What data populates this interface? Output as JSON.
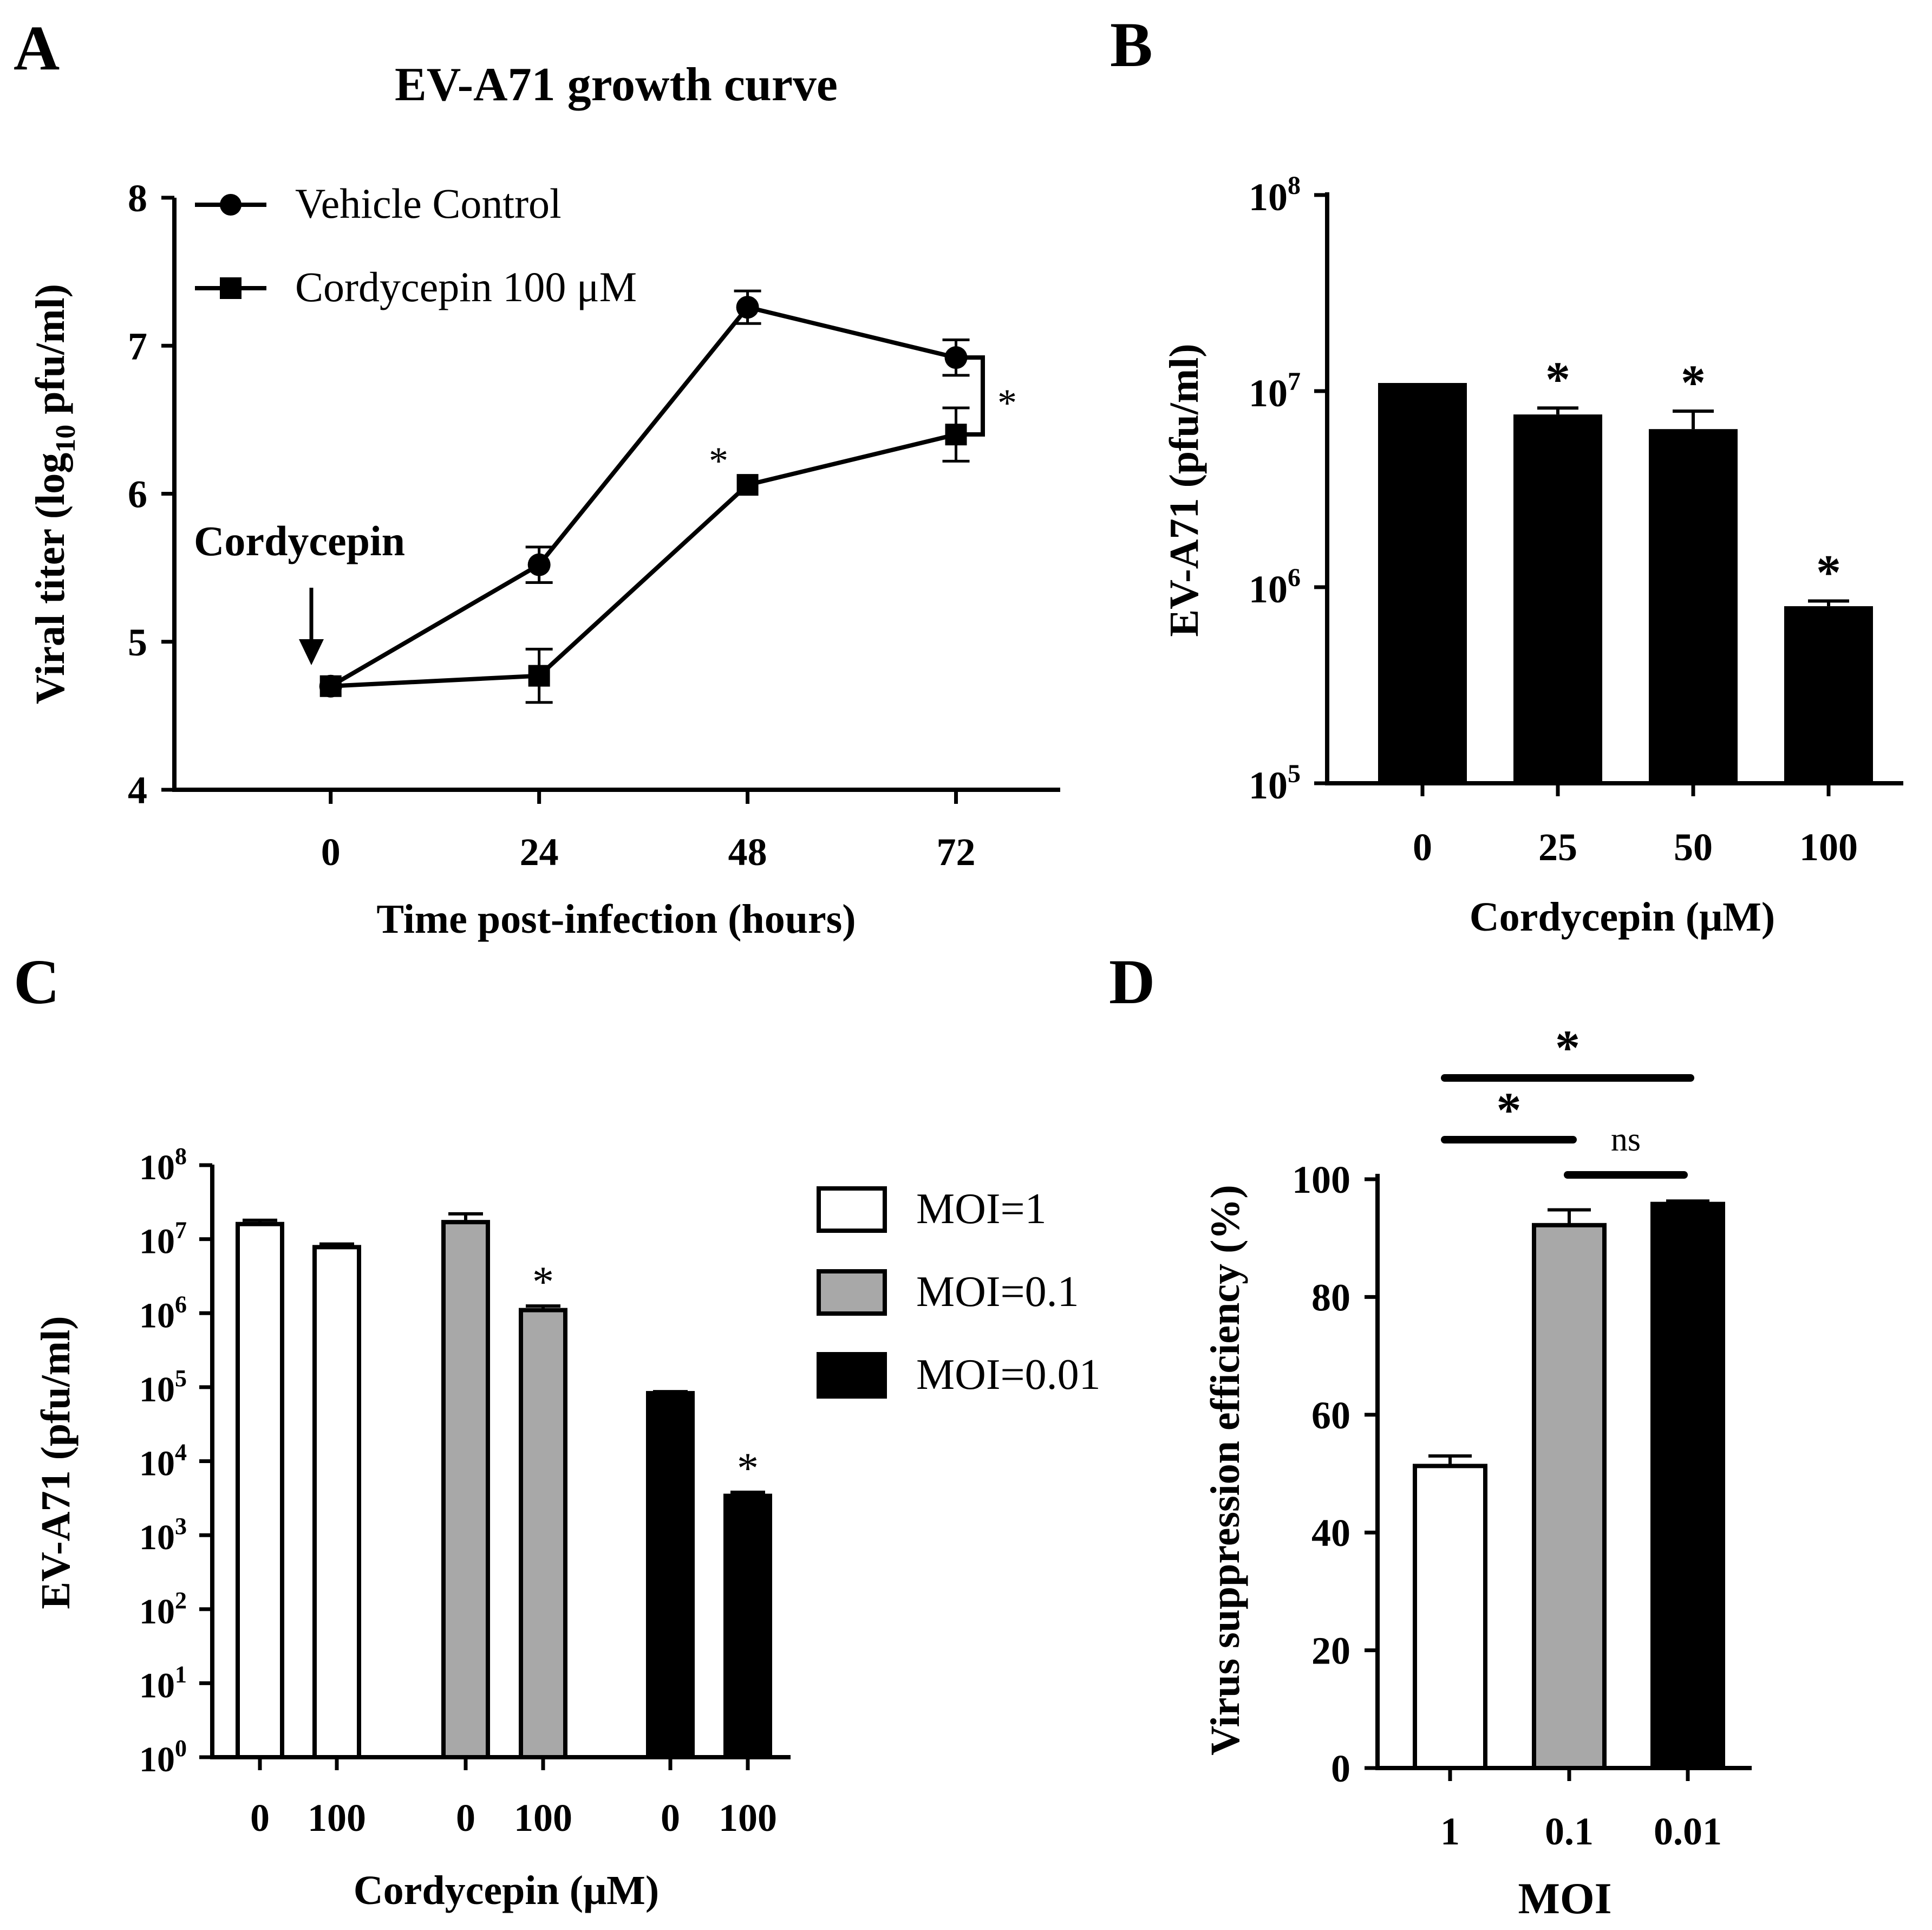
{
  "panels": {
    "A": "A",
    "B": "B",
    "C": "C",
    "D": "D"
  },
  "chart_data": [
    {
      "panel": "A",
      "type": "line",
      "title": "EV-A71 growth curve",
      "xlabel": "Time post-infection (hours)",
      "ylabel_parts": [
        "Viral titer (log",
        "10",
        " pfu/ml)"
      ],
      "x": [
        0,
        24,
        48,
        72
      ],
      "x_ticks": [
        "0",
        "24",
        "48",
        "72"
      ],
      "xlim": [
        -18,
        84
      ],
      "ylim": [
        4,
        8
      ],
      "y_ticks": [
        "4",
        "5",
        "6",
        "7",
        "8"
      ],
      "series": [
        {
          "name": "Vehicle Control",
          "marker": "circle",
          "values": [
            4.7,
            5.52,
            7.26,
            6.92
          ],
          "errors": [
            0,
            0.12,
            0.11,
            0.12
          ]
        },
        {
          "name": "Cordycepin 100 μM",
          "marker": "square",
          "values": [
            4.7,
            4.77,
            6.06,
            6.4
          ],
          "errors": [
            0,
            0.18,
            0,
            0.18
          ]
        }
      ],
      "annotations": {
        "treatment_label": "Cordycepin",
        "star_48": "*",
        "bracket_star": "*"
      },
      "legend": "top-left"
    },
    {
      "panel": "B",
      "type": "bar",
      "scale": "log",
      "xlabel": "Cordycepin (μM)",
      "ylabel": "EV-A71 (pfu/ml)",
      "categories": [
        "0",
        "25",
        "50",
        "100"
      ],
      "values": [
        11000000,
        7600000,
        6400000,
        800000
      ],
      "errors": [
        0,
        600000,
        1500000,
        50000
      ],
      "significance": [
        "",
        "*",
        "*",
        "*"
      ],
      "ylim": [
        100000,
        100000000
      ],
      "y_tick_exponents": [
        "5",
        "6",
        "7",
        "8"
      ],
      "y_tick_base": "10"
    },
    {
      "panel": "C",
      "type": "bar",
      "scale": "log",
      "xlabel": "Cordycepin (μM)",
      "ylabel": "EV-A71 (pfu/ml)",
      "categories": [
        "0",
        "100",
        "0",
        "100",
        "0",
        "100"
      ],
      "groups": [
        {
          "name": "MOI=1",
          "color": "#ffffff",
          "values": [
            16000000,
            7800000
          ],
          "errors": [
            2000000,
            800000
          ],
          "significance": [
            "",
            ""
          ]
        },
        {
          "name": "MOI=0.1",
          "color": "#a8a8a8",
          "values": [
            17000000,
            1100000
          ],
          "errors": [
            5000000,
            150000
          ],
          "significance": [
            "",
            "*"
          ]
        },
        {
          "name": "MOI=0.01",
          "color": "#000000",
          "values": [
            83000,
            3400
          ],
          "errors": [
            4000,
            400
          ],
          "significance": [
            "",
            "*"
          ]
        }
      ],
      "ylim": [
        1,
        100000000
      ],
      "y_tick_exponents": [
        "0",
        "1",
        "2",
        "3",
        "4",
        "5",
        "6",
        "7",
        "8"
      ],
      "y_tick_base": "10",
      "legend": "right"
    },
    {
      "panel": "D",
      "type": "bar",
      "xlabel": "MOI",
      "ylabel": "Virus suppression efficiency (%)",
      "categories": [
        "1",
        "0.1",
        "0.01"
      ],
      "values": [
        51.3,
        92.2,
        95.8
      ],
      "errors": [
        1.7,
        2.6,
        0.5
      ],
      "colors": [
        "#ffffff",
        "#a8a8a8",
        "#000000"
      ],
      "ylim": [
        0,
        100
      ],
      "y_ticks": [
        "0",
        "20",
        "40",
        "60",
        "80",
        "100"
      ],
      "comparisons": [
        {
          "from": "1",
          "to": "0.01",
          "label": "*"
        },
        {
          "from": "1",
          "to": "0.1",
          "label": "*"
        },
        {
          "from": "0.1",
          "to": "0.01",
          "label": "ns"
        }
      ]
    }
  ]
}
